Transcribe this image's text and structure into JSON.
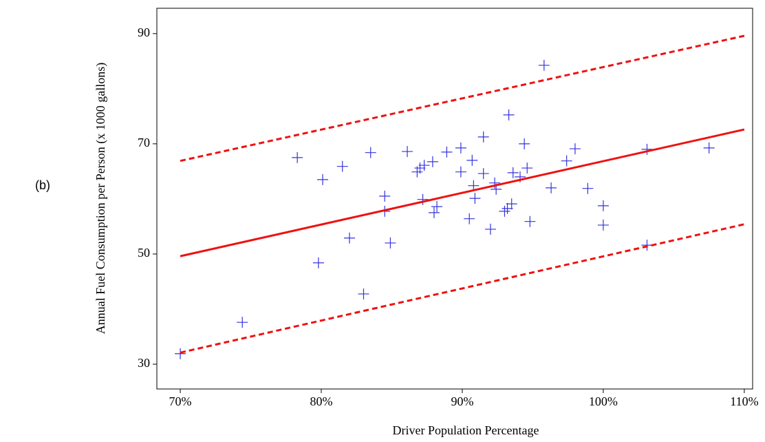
{
  "chart_data": {
    "type": "scatter",
    "panel_label": "(b)",
    "x_label": "Driver Population Percentage",
    "y_label": "Annual Fuel Consumption per Person (x 1000 gallons)",
    "xlim": [
      68.34,
      110.59
    ],
    "ylim": [
      25.5,
      94.6
    ],
    "xticks": [
      {
        "value": 70,
        "label": "70%"
      },
      {
        "value": 80,
        "label": "80%"
      },
      {
        "value": 90,
        "label": "90%"
      },
      {
        "value": 100,
        "label": "100%"
      },
      {
        "value": 110,
        "label": "110%"
      }
    ],
    "yticks": [
      30,
      50,
      70,
      90
    ],
    "series": [
      {
        "type": "scatter",
        "color": "#3333dd",
        "marker": "+",
        "x": [
          70.0,
          74.4,
          78.3,
          80.1,
          79.8,
          81.5,
          82.0,
          83.0,
          83.5,
          84.5,
          84.5,
          84.9,
          86.1,
          86.8,
          87.0,
          87.3,
          87.2,
          87.9,
          88.0,
          88.2,
          88.9,
          89.9,
          89.9,
          90.5,
          90.7,
          90.8,
          90.9,
          91.5,
          91.5,
          92.0,
          92.3,
          92.4,
          93.0,
          93.2,
          93.3,
          93.5,
          93.6,
          94.1,
          94.4,
          94.6,
          94.8,
          95.8,
          96.3,
          97.4,
          98.0,
          98.9,
          100.0,
          100.0,
          103.1,
          103.1,
          107.5
        ],
        "values": [
          31.9,
          37.6,
          67.5,
          63.5,
          48.4,
          65.9,
          52.9,
          42.75,
          68.4,
          60.5,
          57.75,
          52.0,
          68.6,
          64.9,
          65.6,
          66.1,
          59.9,
          66.75,
          57.5,
          58.6,
          68.5,
          69.25,
          64.9,
          56.4,
          67.0,
          62.4,
          60.1,
          64.6,
          71.25,
          54.5,
          62.9,
          61.75,
          57.75,
          58.25,
          75.25,
          59.1,
          64.75,
          64.0,
          70.0,
          65.6,
          55.9,
          84.25,
          62.0,
          66.9,
          69.1,
          61.9,
          58.75,
          55.25,
          69.0,
          51.6,
          69.25
        ]
      },
      {
        "type": "line",
        "color": "#ee1111",
        "dashed": false,
        "x": [
          70,
          110
        ],
        "values": [
          49.6,
          72.6
        ]
      },
      {
        "type": "line",
        "color": "#ee1111",
        "dashed": true,
        "x": [
          70,
          110
        ],
        "values": [
          66.9,
          89.6
        ]
      },
      {
        "type": "line",
        "color": "#ee1111",
        "dashed": true,
        "x": [
          70,
          110
        ],
        "values": [
          32.1,
          55.4
        ]
      }
    ]
  }
}
